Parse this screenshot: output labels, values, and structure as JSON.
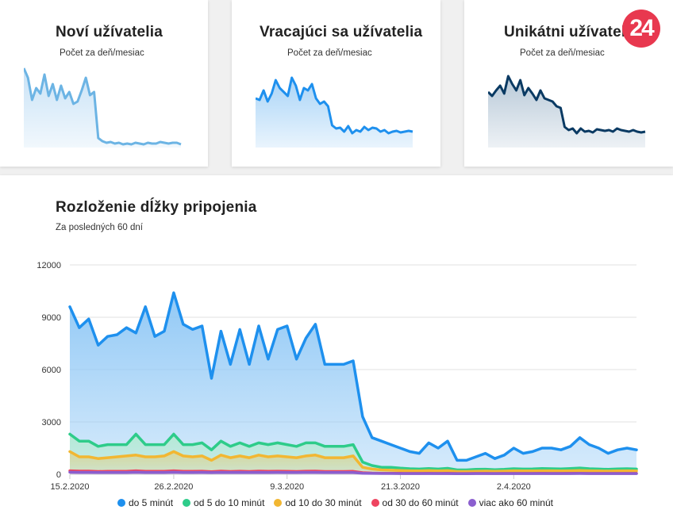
{
  "cards": [
    {
      "title": "Noví užívatelia",
      "subtitle": "Počet za deň/mesiac",
      "color": "#6cb4e4",
      "fill": "#c8e2f6",
      "values": [
        100,
        88,
        60,
        75,
        68,
        92,
        65,
        80,
        60,
        78,
        62,
        70,
        55,
        58,
        72,
        88,
        66,
        70,
        12,
        8,
        6,
        7,
        5,
        6,
        4,
        5,
        4,
        6,
        5,
        4,
        6,
        5,
        5,
        7,
        6,
        5,
        6,
        6,
        4
      ]
    },
    {
      "title": "Vracajúci sa užívatelia",
      "subtitle": "Počet za deň/mesiac",
      "color": "#1e90ee",
      "fill": "#a9d4f7",
      "values": [
        62,
        60,
        72,
        58,
        68,
        85,
        75,
        70,
        65,
        88,
        78,
        60,
        75,
        72,
        80,
        62,
        55,
        58,
        52,
        28,
        24,
        25,
        20,
        27,
        18,
        22,
        20,
        26,
        22,
        25,
        24,
        20,
        22,
        18,
        20,
        21,
        19,
        20,
        21,
        20
      ]
    },
    {
      "title": "Unikátni užívatelia",
      "subtitle": "Počet za deň/mesiac",
      "color": "#0a3a63",
      "fill": "#b8c9d8",
      "values": [
        70,
        65,
        72,
        78,
        68,
        90,
        80,
        72,
        85,
        66,
        75,
        68,
        60,
        72,
        62,
        60,
        58,
        52,
        50,
        26,
        22,
        24,
        18,
        24,
        20,
        21,
        19,
        23,
        22,
        21,
        22,
        20,
        24,
        22,
        21,
        20,
        22,
        20,
        19,
        20
      ]
    }
  ],
  "logo_text": "24",
  "chart_data": {
    "type": "area",
    "title": "Rozloženie dĺžky pripojenia",
    "subtitle": "Za posledných 60 dní",
    "ylim": [
      0,
      12000
    ],
    "yticks": [
      "12000",
      "9000",
      "6000",
      "3000",
      "0"
    ],
    "ytick_values": [
      12000,
      9000,
      6000,
      3000,
      0
    ],
    "xtick_labels": [
      "15.2.2020",
      "26.2.2020",
      "9.3.2020",
      "21.3.2020",
      "2.4.2020"
    ],
    "xtick_indices": [
      0,
      11,
      23,
      35,
      47
    ],
    "n_points": 61,
    "series": [
      {
        "name": "do 5 minút",
        "color": "#1e90ee",
        "fill": "#8cc6f5",
        "values": [
          9600,
          8400,
          8900,
          7400,
          7900,
          8000,
          8400,
          8100,
          9600,
          7900,
          8200,
          10400,
          8600,
          8300,
          8500,
          5500,
          8200,
          6300,
          8300,
          6300,
          8500,
          6600,
          8300,
          8500,
          6600,
          7800,
          8600,
          6300,
          6300,
          6300,
          6500,
          3300,
          2100,
          1900,
          1700,
          1500,
          1300,
          1200,
          1800,
          1500,
          1900,
          800,
          800,
          1000,
          1200,
          900,
          1100,
          1500,
          1200,
          1300,
          1500,
          1500,
          1400,
          1600,
          2100,
          1700,
          1500,
          1200,
          1400,
          1500,
          1400
        ]
      },
      {
        "name": "od 5 do 10 minút",
        "color": "#2ecc8a",
        "fill": "#b5ead3",
        "values": [
          2300,
          1900,
          1900,
          1600,
          1700,
          1700,
          1700,
          2300,
          1700,
          1700,
          1700,
          2300,
          1700,
          1700,
          1800,
          1400,
          1900,
          1600,
          1800,
          1600,
          1800,
          1700,
          1800,
          1700,
          1600,
          1800,
          1800,
          1600,
          1600,
          1600,
          1700,
          700,
          500,
          400,
          400,
          350,
          320,
          300,
          330,
          300,
          340,
          250,
          250,
          280,
          290,
          260,
          280,
          320,
          300,
          310,
          330,
          320,
          310,
          330,
          360,
          320,
          300,
          280,
          310,
          320,
          300
        ]
      },
      {
        "name": "od 10 do 30 minút",
        "color": "#f2b732",
        "fill": "#d8d79c",
        "values": [
          1300,
          1000,
          1000,
          900,
          950,
          1000,
          1050,
          1100,
          1000,
          1000,
          1050,
          1300,
          1050,
          1000,
          1050,
          800,
          1100,
          950,
          1050,
          950,
          1100,
          1000,
          1050,
          1000,
          950,
          1050,
          1100,
          950,
          950,
          950,
          1050,
          400,
          300,
          250,
          230,
          220,
          200,
          190,
          210,
          190,
          210,
          160,
          160,
          170,
          180,
          170,
          180,
          200,
          190,
          190,
          200,
          200,
          190,
          200,
          220,
          200,
          190,
          180,
          190,
          200,
          190
        ]
      },
      {
        "name": "od 30 do 60 minút",
        "color": "#ee4460",
        "fill": "#e8b9c4",
        "values": [
          200,
          180,
          180,
          160,
          170,
          170,
          170,
          200,
          170,
          170,
          170,
          200,
          170,
          170,
          175,
          150,
          180,
          160,
          175,
          160,
          180,
          170,
          175,
          170,
          160,
          175,
          180,
          160,
          160,
          160,
          170,
          90,
          70,
          60,
          60,
          55,
          50,
          50,
          55,
          50,
          55,
          45,
          45,
          48,
          50,
          46,
          48,
          52,
          50,
          51,
          53,
          52,
          51,
          53,
          57,
          52,
          50,
          48,
          50,
          51,
          50
        ]
      },
      {
        "name": "viac ako 60 minút",
        "color": "#8b5fcf",
        "fill": "#cab8e6",
        "values": [
          120,
          110,
          110,
          100,
          105,
          105,
          105,
          120,
          105,
          105,
          105,
          120,
          105,
          105,
          108,
          95,
          110,
          100,
          108,
          100,
          110,
          105,
          108,
          105,
          100,
          108,
          110,
          100,
          100,
          100,
          105,
          60,
          50,
          45,
          45,
          42,
          40,
          40,
          42,
          40,
          42,
          38,
          38,
          40,
          41,
          39,
          40,
          42,
          41,
          41,
          42,
          42,
          41,
          42,
          44,
          42,
          41,
          40,
          41,
          41,
          41
        ]
      }
    ]
  }
}
